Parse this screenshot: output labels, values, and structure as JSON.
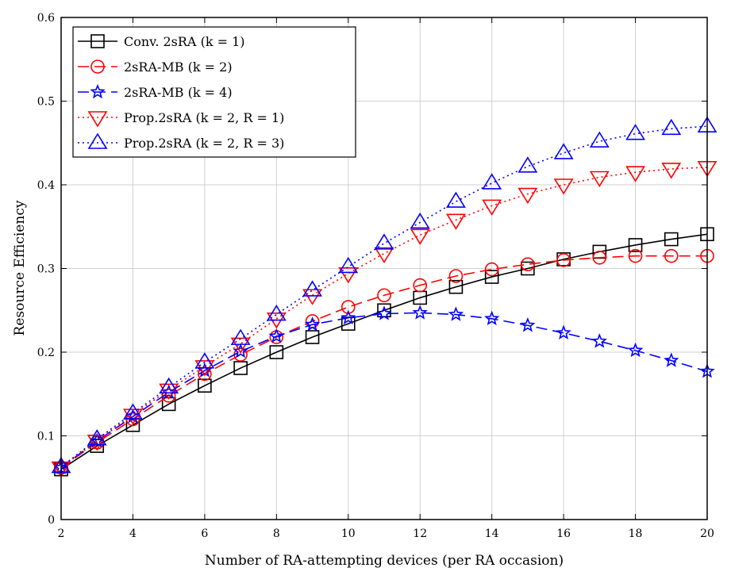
{
  "chart_data": {
    "type": "line",
    "title": "",
    "xlabel": "Number of RA-attempting devices (per RA occasion)",
    "ylabel": "Resource Efficiency",
    "xlim": [
      2,
      20
    ],
    "ylim": [
      0,
      0.6
    ],
    "xticks": [
      2,
      4,
      6,
      8,
      10,
      12,
      14,
      16,
      18,
      20
    ],
    "yticks": [
      0,
      0.1,
      0.2,
      0.3,
      0.4,
      0.5,
      0.6
    ],
    "ytick_labels": [
      "0",
      "0.1",
      "0.2",
      "0.3",
      "0.4",
      "0.5",
      "0.6"
    ],
    "grid": true,
    "legend_position": "top-left",
    "x": [
      2,
      3,
      4,
      5,
      6,
      7,
      8,
      9,
      10,
      11,
      12,
      13,
      14,
      15,
      16,
      17,
      18,
      19,
      20
    ],
    "series": [
      {
        "name": "Conv. 2sRA (k = 1)",
        "color": "#000000",
        "dash": "solid",
        "marker": "square",
        "values": [
          0.06,
          0.088,
          0.113,
          0.138,
          0.16,
          0.181,
          0.2,
          0.218,
          0.234,
          0.25,
          0.265,
          0.278,
          0.29,
          0.3,
          0.311,
          0.32,
          0.328,
          0.335,
          0.341
        ]
      },
      {
        "name": "2sRA-MB (k = 2)",
        "color": "#ff0000",
        "dash": "dashed",
        "marker": "circle",
        "values": [
          0.062,
          0.092,
          0.12,
          0.148,
          0.174,
          0.197,
          0.218,
          0.237,
          0.254,
          0.268,
          0.28,
          0.291,
          0.299,
          0.305,
          0.31,
          0.313,
          0.315,
          0.315,
          0.315
        ]
      },
      {
        "name": "2sRA-MB (k = 4)",
        "color": "#0000ff",
        "dash": "dashed",
        "marker": "star",
        "values": [
          0.062,
          0.094,
          0.123,
          0.152,
          0.178,
          0.201,
          0.219,
          0.233,
          0.241,
          0.246,
          0.247,
          0.245,
          0.24,
          0.232,
          0.223,
          0.213,
          0.202,
          0.19,
          0.177
        ]
      },
      {
        "name": "Prop.2sRA (k = 2, R = 1)",
        "color": "#ff0000",
        "dash": "dotted",
        "marker": "triangle-down",
        "values": [
          0.062,
          0.094,
          0.125,
          0.155,
          0.183,
          0.21,
          0.24,
          0.268,
          0.294,
          0.318,
          0.34,
          0.358,
          0.375,
          0.389,
          0.4,
          0.409,
          0.415,
          0.419,
          0.421
        ]
      },
      {
        "name": "Prop.2sRA (k = 2, R = 3)",
        "color": "#0000ff",
        "dash": "dotted",
        "marker": "triangle-up",
        "values": [
          0.063,
          0.096,
          0.127,
          0.158,
          0.188,
          0.216,
          0.245,
          0.274,
          0.302,
          0.33,
          0.355,
          0.38,
          0.402,
          0.422,
          0.438,
          0.452,
          0.461,
          0.467,
          0.47
        ]
      }
    ]
  }
}
